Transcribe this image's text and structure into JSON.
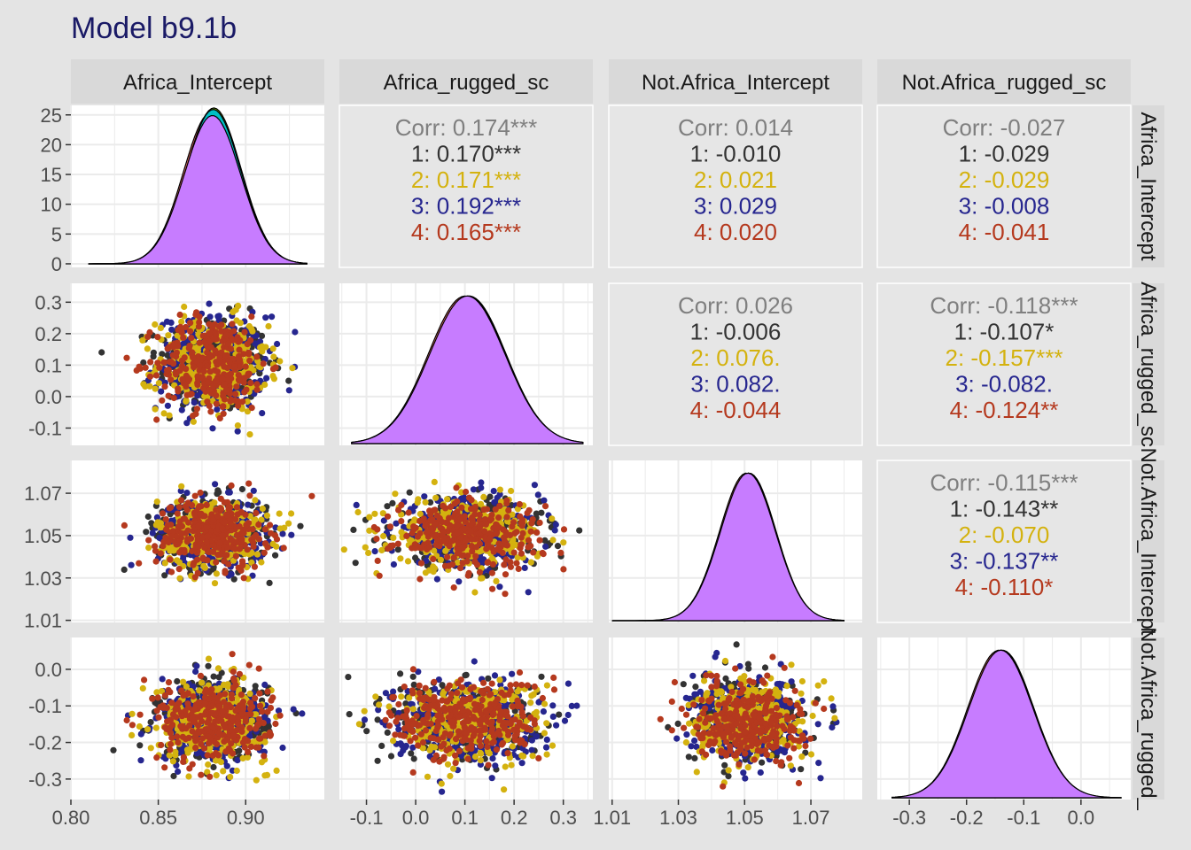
{
  "title": "Model b9.1b",
  "colors": {
    "chain_1": "#333333",
    "chain_2": "#d4b20f",
    "chain_3": "#26268f",
    "chain_4": "#b5391e",
    "overall": "#7f7f7f",
    "density_fill_main": "#c77cff",
    "density_fill_red": "#f8766d",
    "density_fill_green": "#7cae00",
    "density_fill_teal": "#00bfc4",
    "panel_bg": "#ffffff",
    "corr_panel_bg": "#e6e6e6",
    "strip_bg": "#d9d9d9",
    "grid": "#ebebeb",
    "plot_bg": "#e4e4e4",
    "title": "#1a1a66"
  },
  "chart_data": {
    "type": "pairs",
    "variables": [
      "Africa_Intercept",
      "Africa_rugged_sc",
      "Not.Africa_Intercept",
      "Not.Africa_rugged_sc"
    ],
    "row_strip_labels": [
      "Africa_Intercept",
      "Africa_rugged_sc",
      "Not.Africa_Intercept",
      "Not.Africa_rugged_"
    ],
    "axes": [
      {
        "range": [
          0.8,
          0.945
        ],
        "ticks": [
          0.8,
          0.85,
          0.9
        ],
        "tick_labels": [
          "0.80",
          "0.85",
          "0.90"
        ]
      },
      {
        "range": [
          -0.155,
          0.36
        ],
        "ticks": [
          -0.1,
          0.0,
          0.1,
          0.2,
          0.3
        ],
        "tick_labels": [
          "-0.1",
          "0.0",
          "0.1",
          "0.2",
          "0.3"
        ]
      },
      {
        "range": [
          1.009,
          1.0855
        ],
        "ticks": [
          1.01,
          1.03,
          1.05,
          1.07
        ],
        "tick_labels": [
          "1.01",
          "1.03",
          "1.05",
          "1.07"
        ]
      },
      {
        "range": [
          -0.356,
          0.087
        ],
        "ticks": [
          -0.3,
          -0.2,
          -0.1,
          0.0
        ],
        "tick_labels": [
          "-0.3",
          "-0.2",
          "-0.1",
          "0.0"
        ]
      }
    ],
    "diag_y_axis": {
      "range": [
        -0.6,
        26.6
      ],
      "ticks": [
        0,
        5,
        10,
        15,
        20,
        25
      ],
      "tick_labels": [
        "0",
        "5",
        "10",
        "15",
        "20",
        "25"
      ]
    },
    "row_y_tick_labels": [
      [
        "0",
        "5",
        "10",
        "15",
        "20",
        "25"
      ],
      [
        "-0.1",
        "0.0",
        "0.1",
        "0.2",
        "0.3"
      ],
      [
        "1.01",
        "1.03",
        "1.05",
        "1.07"
      ],
      [
        "-0.3",
        "-0.2",
        "-0.1",
        "0.0"
      ]
    ],
    "marginals": [
      {
        "variable": "Africa_Intercept",
        "mean": 0.881,
        "sd": 0.0157,
        "peak": 25.4,
        "support": [
          0.81,
          0.935
        ]
      },
      {
        "variable": "Africa_rugged_sc",
        "mean": 0.105,
        "sd": 0.075,
        "peak": 5.3,
        "support": [
          -0.13,
          0.34
        ]
      },
      {
        "variable": "Not.Africa_Intercept",
        "mean": 1.051,
        "sd": 0.0081,
        "peak": 49,
        "support": [
          1.01,
          1.08
        ]
      },
      {
        "variable": "Not.Africa_rugged_sc",
        "mean": -0.14,
        "sd": 0.055,
        "peak": 7.2,
        "support": [
          -0.33,
          0.07
        ]
      }
    ],
    "correlations": [
      {
        "row": 0,
        "col": 1,
        "lines": [
          {
            "label": "Corr: 0.174***",
            "color": "overall"
          },
          {
            "label": "1: 0.170***",
            "color": "chain_1"
          },
          {
            "label": "2: 0.171***",
            "color": "chain_2"
          },
          {
            "label": "3: 0.192***",
            "color": "chain_3"
          },
          {
            "label": "4: 0.165***",
            "color": "chain_4"
          }
        ]
      },
      {
        "row": 0,
        "col": 2,
        "lines": [
          {
            "label": "Corr: 0.014",
            "color": "overall"
          },
          {
            "label": "1: -0.010",
            "color": "chain_1"
          },
          {
            "label": "2: 0.021",
            "color": "chain_2"
          },
          {
            "label": "3: 0.029",
            "color": "chain_3"
          },
          {
            "label": "4: 0.020",
            "color": "chain_4"
          }
        ]
      },
      {
        "row": 0,
        "col": 3,
        "lines": [
          {
            "label": "Corr: -0.027",
            "color": "overall"
          },
          {
            "label": "1: -0.029",
            "color": "chain_1"
          },
          {
            "label": "2: -0.029",
            "color": "chain_2"
          },
          {
            "label": "3: -0.008",
            "color": "chain_3"
          },
          {
            "label": "4: -0.041",
            "color": "chain_4"
          }
        ]
      },
      {
        "row": 1,
        "col": 2,
        "lines": [
          {
            "label": "Corr: 0.026",
            "color": "overall"
          },
          {
            "label": "1: -0.006",
            "color": "chain_1"
          },
          {
            "label": "2: 0.076.",
            "color": "chain_2"
          },
          {
            "label": "3: 0.082.",
            "color": "chain_3"
          },
          {
            "label": "4: -0.044",
            "color": "chain_4"
          }
        ]
      },
      {
        "row": 1,
        "col": 3,
        "lines": [
          {
            "label": "Corr: -0.118***",
            "color": "overall"
          },
          {
            "label": "1: -0.107*",
            "color": "chain_1"
          },
          {
            "label": "2: -0.157***",
            "color": "chain_2"
          },
          {
            "label": "3: -0.082.",
            "color": "chain_3"
          },
          {
            "label": "4: -0.124**",
            "color": "chain_4"
          }
        ]
      },
      {
        "row": 2,
        "col": 3,
        "lines": [
          {
            "label": "Corr: -0.115***",
            "color": "overall"
          },
          {
            "label": "1: -0.143**",
            "color": "chain_1"
          },
          {
            "label": "2: -0.070",
            "color": "chain_2"
          },
          {
            "label": "3: -0.137**",
            "color": "chain_3"
          },
          {
            "label": "4: -0.110*",
            "color": "chain_4"
          }
        ]
      }
    ],
    "scatter": {
      "chains": 4,
      "points_per_chain": 300,
      "point_colors": [
        "chain_1",
        "chain_2",
        "chain_3",
        "chain_4"
      ]
    },
    "grid": true,
    "legend": "none"
  }
}
